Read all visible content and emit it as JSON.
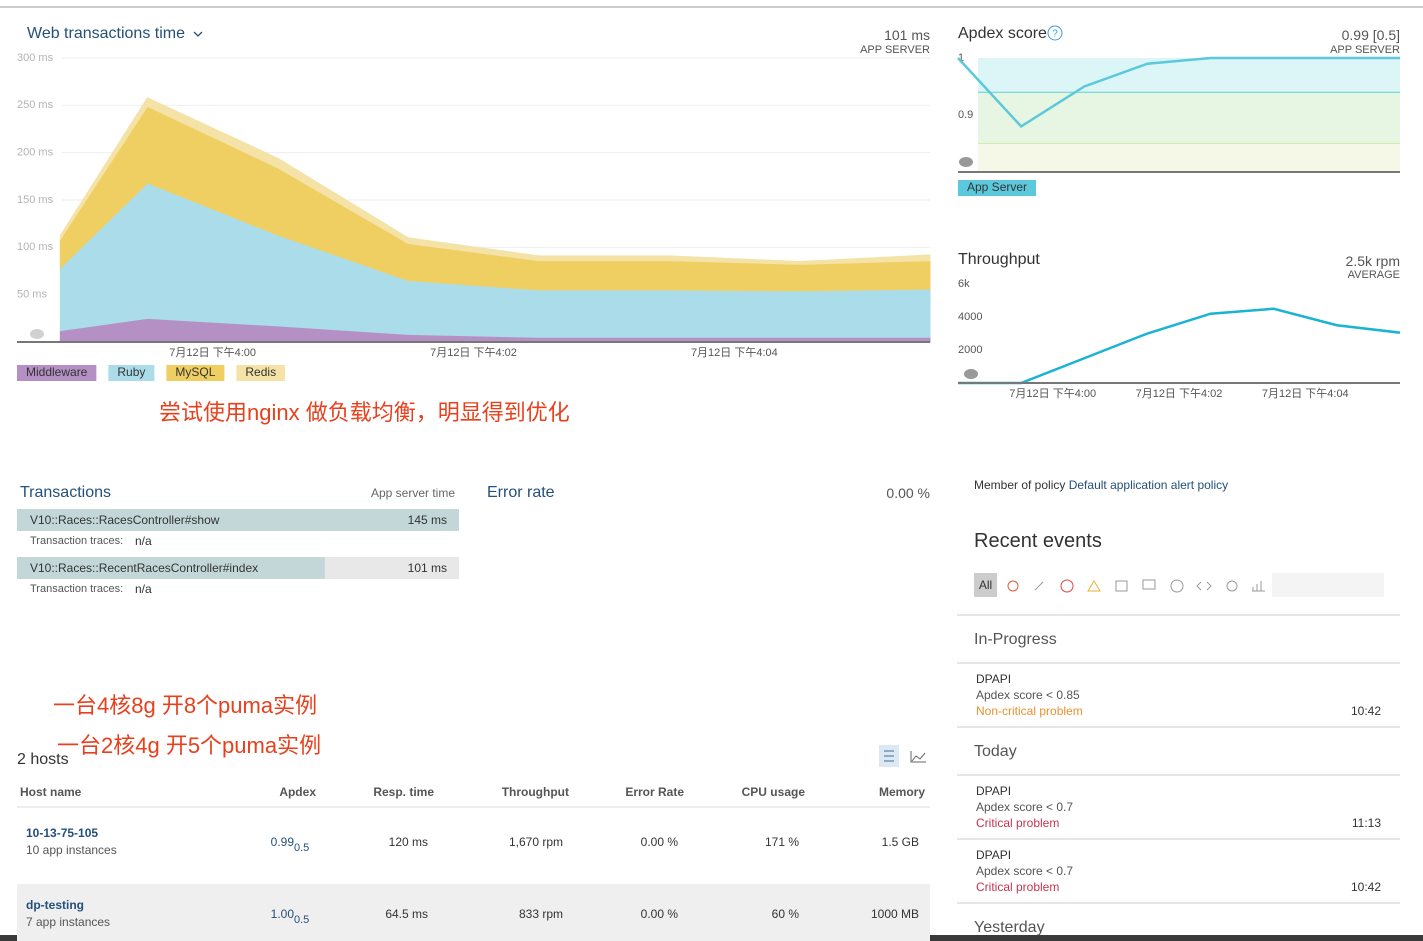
{
  "chart_data": [
    {
      "type": "area",
      "stacked": true,
      "title": "Web transactions time",
      "summary": "101 ms",
      "summary_label": "APP SERVER",
      "x": [
        -1.17,
        -0.5,
        0.5,
        1.5,
        2.5,
        3.5,
        4.5,
        5.5
      ],
      "xlim": [
        -1.5,
        5.5
      ],
      "xticks": [
        {
          "value": 0,
          "label": "7月12日 下午4:00"
        },
        {
          "value": 2,
          "label": "7月12日 下午4:02"
        },
        {
          "value": 4,
          "label": "7月12日 下午4:04"
        }
      ],
      "ylim": [
        0,
        300
      ],
      "yticks": [
        {
          "value": 50,
          "label": "50 ms"
        },
        {
          "value": 100,
          "label": "100 ms"
        },
        {
          "value": 150,
          "label": "150 ms"
        },
        {
          "value": 200,
          "label": "200 ms"
        },
        {
          "value": 250,
          "label": "250 ms"
        },
        {
          "value": 300,
          "label": "300 ms"
        }
      ],
      "grid": true,
      "series": [
        {
          "name": "Middleware",
          "color": "#b590c4",
          "values": [
            12,
            25,
            17,
            8,
            5,
            5,
            5,
            5
          ]
        },
        {
          "name": "Ruby",
          "color": "#aadcea",
          "values": [
            66,
            143,
            96,
            57,
            50,
            50,
            49,
            51
          ]
        },
        {
          "name": "MySQL",
          "color": "#f0cf62",
          "values": [
            30,
            81,
            71,
            39,
            31,
            31,
            28,
            30
          ]
        },
        {
          "name": "Redis",
          "color": "#f4e2a6",
          "values": [
            4,
            9,
            10,
            6,
            5,
            5,
            3,
            6
          ]
        }
      ]
    },
    {
      "type": "line",
      "title": "Apdex score",
      "summary": "0.99 [0.5]",
      "summary_label": "APP SERVER",
      "x": [
        -1.5,
        -0.5,
        0.5,
        1.5,
        2.5,
        3.5,
        4.5,
        5.5
      ],
      "xlim": [
        -1.5,
        5.5
      ],
      "ylim": [
        0.8,
        1
      ],
      "yticks": [
        0.9,
        1
      ],
      "thresholds": [
        0.94,
        0.85
      ],
      "series": [
        {
          "name": "App Server",
          "color": "#5bc8dc",
          "values": [
            1,
            0.88,
            0.95,
            0.99,
            1,
            1,
            1,
            1
          ]
        }
      ]
    },
    {
      "type": "line",
      "title": "Throughput",
      "summary": "2.5k rpm",
      "summary_label": "AVERAGE",
      "x": [
        -1.5,
        -0.5,
        0.5,
        1.5,
        2.5,
        3.5,
        4.5,
        5.5
      ],
      "xlim": [
        -1.5,
        5.5
      ],
      "xticks": [
        {
          "value": 0,
          "label": "7月12日 下午4:00"
        },
        {
          "value": 2,
          "label": "7月12日 下午4:02"
        },
        {
          "value": 4,
          "label": "7月12日 下午4:04"
        }
      ],
      "ylim": [
        0,
        6000
      ],
      "yticks": [
        2000,
        4000,
        {
          "value": 6000,
          "label": "6k"
        }
      ],
      "series": [
        {
          "color": "#19b3d3",
          "values": [
            0,
            0,
            1500,
            3000,
            4200,
            4500,
            3500,
            3050
          ]
        }
      ]
    }
  ],
  "annotations": [
    "尝试使用nginx 做负载均衡，明显得到优化",
    "一台4核8g 开8个puma实例",
    "一台2核4g 开5个puma实例"
  ],
  "transactions": {
    "title": "Transactions",
    "column": "App server time",
    "rows": [
      {
        "name": "V10::Races::RacesController#show",
        "traces_label": "Transaction traces:",
        "traces": "n/a"
      },
      {
        "name": "V10::Races::RecentRacesController#index",
        "traces_label": "Transaction traces:",
        "traces": "n/a"
      }
    ],
    "values": [
      145,
      101
    ],
    "value_labels": [
      "145 ms",
      "101 ms"
    ]
  },
  "error_rate": {
    "title": "Error rate",
    "value": "0.00 %"
  },
  "hosts": {
    "title": "2 hosts",
    "columns": [
      "Host name",
      "Apdex",
      "Resp. time",
      "Throughput",
      "Error Rate",
      "CPU usage",
      "Memory"
    ],
    "rows": [
      {
        "name": "10-13-75-105",
        "instances": "10 app instances",
        "apdex": "0.99",
        "apdex_t": "0.5",
        "resp_time": "120 ms",
        "throughput": "1,670 rpm",
        "error_rate": "0.00 %",
        "cpu": "171 %",
        "memory": "1.5 GB"
      },
      {
        "name": "dp-testing",
        "instances": "7 app instances",
        "apdex": "1.00",
        "apdex_t": "0.5",
        "resp_time": "64.5 ms",
        "throughput": "833 rpm",
        "error_rate": "0.00 %",
        "cpu": "60 %",
        "memory": "1000 MB"
      }
    ]
  },
  "policy": {
    "label": "Member of policy",
    "link": "Default application alert policy"
  },
  "events": {
    "title": "Recent events",
    "filter": "All",
    "sections": [
      {
        "title": "In-Progress",
        "items": [
          {
            "app": "DPAPI",
            "desc": "Apdex score < 0.85",
            "status": "Non-critical problem",
            "color": "#e8912e",
            "time": "10:42"
          }
        ]
      },
      {
        "title": "Today",
        "items": [
          {
            "app": "DPAPI",
            "desc": "Apdex score < 0.7",
            "status": "Critical problem",
            "color": "#c2374e",
            "time": "11:13"
          },
          {
            "app": "DPAPI",
            "desc": "Apdex score < 0.7",
            "status": "Critical problem",
            "color": "#c2374e",
            "time": "10:42"
          }
        ]
      },
      {
        "title": "Yesterday"
      }
    ]
  }
}
